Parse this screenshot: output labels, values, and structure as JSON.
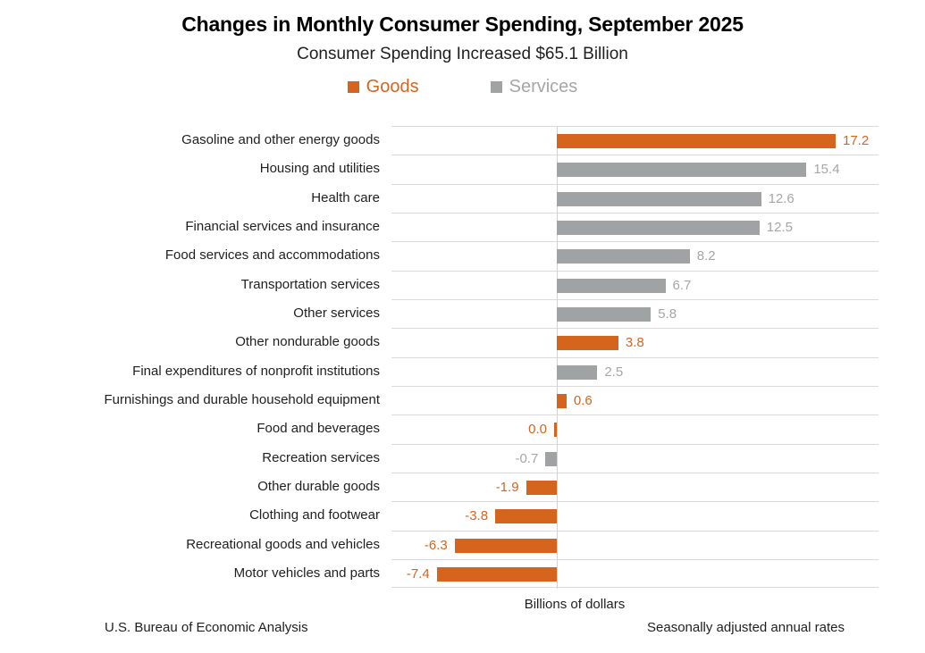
{
  "title": "Changes in Monthly Consumer Spending, September 2025",
  "subtitle": "Consumer Spending Increased $65.1 Billion",
  "legend": [
    {
      "label": "Goods",
      "swatch_color": "#d5651d",
      "text_color": "#d5651d"
    },
    {
      "label": "Services",
      "swatch_color": "#a0a3a4",
      "text_color": "#a6a6a6"
    }
  ],
  "colors": {
    "goods": "#d5651d",
    "services": "#a0a3a4",
    "services_value_label": "#a6a6a6",
    "gridline": "#dadada",
    "axis_line": "#d2d2d2",
    "text": "#1f1f1f"
  },
  "chart_data": {
    "type": "bar",
    "orientation": "horizontal",
    "title": "Changes in Monthly Consumer Spending, September 2025",
    "subtitle": "Consumer Spending Increased $65.1 Billion",
    "xlabel": "Billions of dollars",
    "ylabel": "",
    "xlim": [
      -10.2,
      19.8
    ],
    "grid": "horizontal row separators only, no tick labels",
    "legend_position": "top",
    "series_names": [
      "Goods",
      "Services"
    ],
    "rows": [
      {
        "label": "Gasoline and other energy goods",
        "value": 17.2,
        "series": "Goods",
        "value_label": "17.2"
      },
      {
        "label": "Housing and utilities",
        "value": 15.4,
        "series": "Services",
        "value_label": "15.4"
      },
      {
        "label": "Health care",
        "value": 12.6,
        "series": "Services",
        "value_label": "12.6"
      },
      {
        "label": "Financial services and insurance",
        "value": 12.5,
        "series": "Services",
        "value_label": "12.5"
      },
      {
        "label": "Food services and accommodations",
        "value": 8.2,
        "series": "Services",
        "value_label": "8.2"
      },
      {
        "label": "Transportation services",
        "value": 6.7,
        "series": "Services",
        "value_label": "6.7"
      },
      {
        "label": "Other services",
        "value": 5.8,
        "series": "Services",
        "value_label": "5.8"
      },
      {
        "label": "Other nondurable goods",
        "value": 3.8,
        "series": "Goods",
        "value_label": "3.8"
      },
      {
        "label": "Final expenditures of nonprofit institutions",
        "value": 2.5,
        "series": "Services",
        "value_label": "2.5"
      },
      {
        "label": "Furnishings and durable household equipment",
        "value": 0.6,
        "series": "Goods",
        "value_label": "0.6"
      },
      {
        "label": "Food and beverages",
        "value": 0.0,
        "series": "Goods",
        "value_label": "0.0"
      },
      {
        "label": "Recreation services",
        "value": -0.7,
        "series": "Services",
        "value_label": "-0.7"
      },
      {
        "label": "Other durable goods",
        "value": -1.9,
        "series": "Goods",
        "value_label": "-1.9"
      },
      {
        "label": "Clothing and footwear",
        "value": -3.8,
        "series": "Goods",
        "value_label": "-3.8"
      },
      {
        "label": "Recreational goods and vehicles",
        "value": -6.3,
        "series": "Goods",
        "value_label": "-6.3"
      },
      {
        "label": "Motor vehicles and parts",
        "value": -7.4,
        "series": "Goods",
        "value_label": "-7.4"
      }
    ]
  },
  "footer": {
    "axis_title": "Billions of dollars",
    "source": "U.S. Bureau of Economic Analysis",
    "note": "Seasonally adjusted annual rates"
  }
}
